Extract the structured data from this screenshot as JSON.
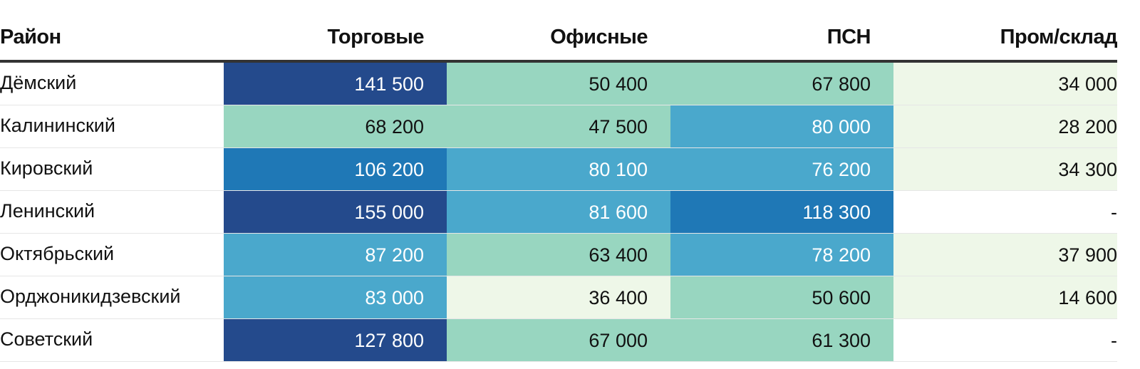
{
  "chart_data": {
    "type": "table",
    "title": "",
    "columns": [
      "Район",
      "Торговые",
      "Офисные",
      "ПСН",
      "Пром/склад"
    ],
    "rows": [
      {
        "district": "Дёмский",
        "values": [
          "141 500",
          "50 400",
          "67 800",
          "34 000"
        ]
      },
      {
        "district": "Калининский",
        "values": [
          "68 200",
          "47 500",
          "80 000",
          "28 200"
        ]
      },
      {
        "district": "Кировский",
        "values": [
          "106 200",
          "80 100",
          "76 200",
          "34 300"
        ]
      },
      {
        "district": "Ленинский",
        "values": [
          "155 000",
          "81 600",
          "118 300",
          "-"
        ]
      },
      {
        "district": "Октябрьский",
        "values": [
          "87 200",
          "63 400",
          "78 200",
          "37 900"
        ]
      },
      {
        "district": "Орджоникидзевский",
        "values": [
          "83 000",
          "36 400",
          "50 600",
          "14 600"
        ]
      },
      {
        "district": "Советский",
        "values": [
          "127 800",
          "67 000",
          "61 300",
          "-"
        ]
      }
    ],
    "color_scale": [
      {
        "min": 0,
        "max": 1,
        "bg": "#ffffff",
        "fg": "#111111"
      },
      {
        "min": 1,
        "max": 40000,
        "bg": "#eef7e8",
        "fg": "#111111"
      },
      {
        "min": 40000,
        "max": 70000,
        "bg": "#98d6c0",
        "fg": "#111111"
      },
      {
        "min": 70000,
        "max": 100000,
        "bg": "#4aa8cc",
        "fg": "#ffffff"
      },
      {
        "min": 100000,
        "max": 120000,
        "bg": "#1f78b6",
        "fg": "#ffffff"
      },
      {
        "min": 120000,
        "max": 1000000000,
        "bg": "#244a8c",
        "fg": "#ffffff"
      }
    ]
  }
}
